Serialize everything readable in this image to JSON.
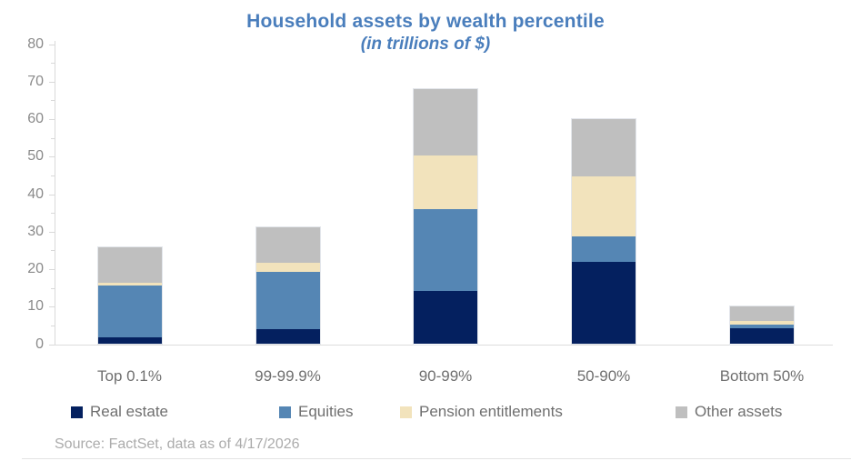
{
  "chart_data": {
    "type": "bar",
    "stacked": true,
    "title": "Household assets by wealth percentile",
    "subtitle": "(in trillions of $)",
    "title_color": "#4a7ebc",
    "categories": [
      "Top 0.1%",
      "99-99.9%",
      "90-99%",
      "50-90%",
      "Bottom 50%"
    ],
    "series": [
      {
        "name": "Real estate",
        "color": "#04205f",
        "values": [
          1.8,
          4.0,
          14.2,
          22.0,
          4.2
        ]
      },
      {
        "name": "Equities",
        "color": "#5586b4",
        "values": [
          13.9,
          15.2,
          21.8,
          6.7,
          0.9
        ]
      },
      {
        "name": "Pension entitlements",
        "color": "#f2e3bc",
        "values": [
          0.7,
          2.6,
          14.3,
          16.1,
          1.2
        ]
      },
      {
        "name": "Other assets",
        "color": "#bfbfbf",
        "values": [
          9.3,
          9.3,
          17.7,
          15.3,
          3.7
        ]
      }
    ],
    "totals": [
      25.7,
      31.1,
      68.0,
      60.1,
      10.0
    ],
    "ylim": [
      0,
      80
    ],
    "ytick_step": 10,
    "yminor_step": 5,
    "ytick_labels": [
      "0",
      "10",
      "20",
      "30",
      "40",
      "50",
      "60",
      "70",
      "80"
    ],
    "grid": false,
    "legend_position": "bottom",
    "axis_color": "#d9d9d9",
    "tick_label_color": "#8a8a8a",
    "category_label_color": "#6f6f6f"
  },
  "source": "Source: FactSet, data as of 4/17/2026"
}
